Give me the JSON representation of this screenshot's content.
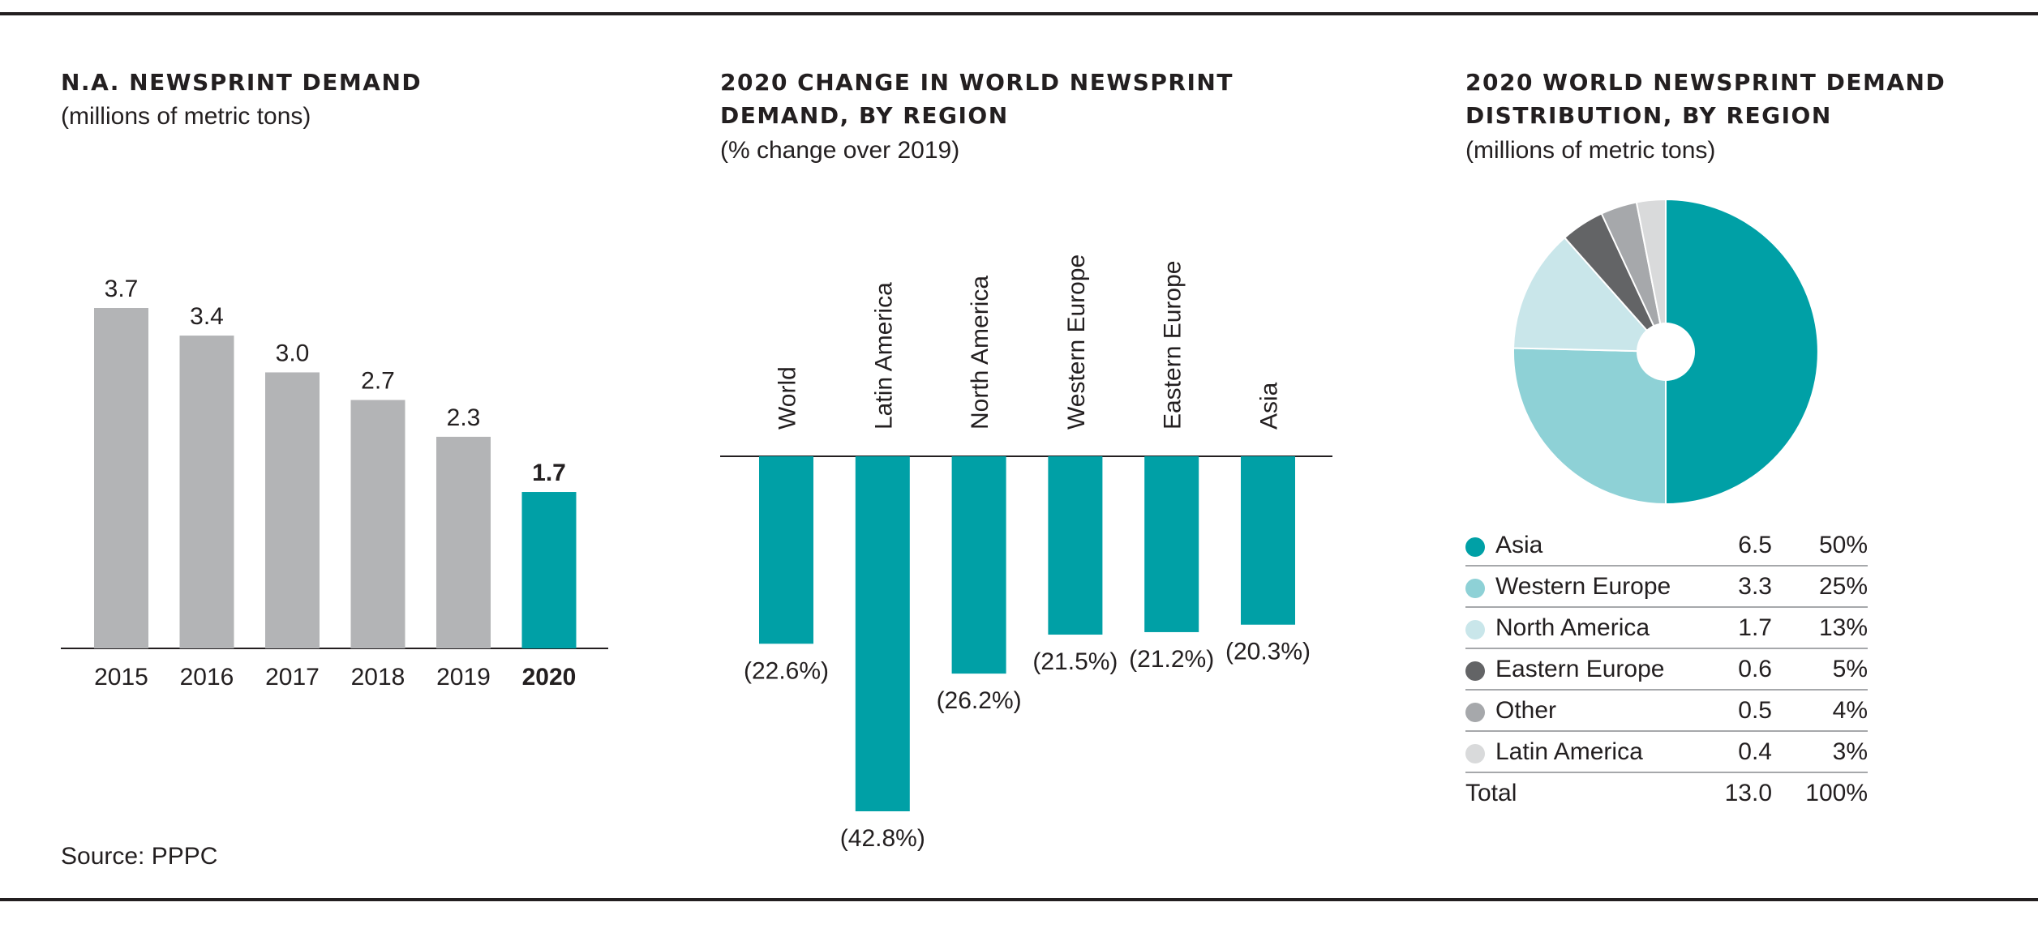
{
  "panels": {
    "left": {
      "title": "N.A. NEWSPRINT DEMAND",
      "subtitle": "(millions of metric tons)"
    },
    "middle": {
      "title_line1": "2020 CHANGE IN WORLD NEWSPRINT",
      "title_line2": "DEMAND, BY REGION",
      "subtitle": "(% change over 2019)"
    },
    "right": {
      "title_line1": "2020 WORLD NEWSPRINT DEMAND",
      "title_line2": "DISTRIBUTION, BY REGION",
      "subtitle": "(millions of metric tons)"
    }
  },
  "source": "Source: PPPC",
  "colors": {
    "teal": "#00a0a6",
    "grey_bar": "#b3b4b6",
    "text": "#231f20"
  },
  "chart_data": [
    {
      "type": "bar",
      "title": "N.A. NEWSPRINT DEMAND",
      "ylabel": "(millions of metric tons)",
      "categories": [
        "2015",
        "2016",
        "2017",
        "2018",
        "2019",
        "2020"
      ],
      "values": [
        3.7,
        3.4,
        3.0,
        2.7,
        2.3,
        1.7
      ],
      "labels": [
        "3.7",
        "3.4",
        "3.0",
        "2.7",
        "2.3",
        "1.7"
      ],
      "highlight_index": 5,
      "colors": [
        "#b3b4b6",
        "#b3b4b6",
        "#b3b4b6",
        "#b3b4b6",
        "#b3b4b6",
        "#00a0a6"
      ],
      "ylim": [
        0,
        4
      ]
    },
    {
      "type": "bar",
      "title": "2020 CHANGE IN WORLD NEWSPRINT DEMAND, BY REGION",
      "ylabel": "(% change over 2019)",
      "categories": [
        "World",
        "Latin America",
        "North America",
        "Western Europe",
        "Eastern Europe",
        "Asia"
      ],
      "values": [
        -22.6,
        -42.8,
        -26.2,
        -21.5,
        -21.2,
        -20.3
      ],
      "labels": [
        "(22.6%)",
        "(42.8%)",
        "(26.2%)",
        "(21.5%)",
        "(21.2%)",
        "(20.3%)"
      ],
      "color": "#00a0a6",
      "ylim": [
        -45,
        0
      ]
    },
    {
      "type": "pie",
      "title": "2020 WORLD NEWSPRINT DEMAND DISTRIBUTION, BY REGION",
      "ylabel": "(millions of metric tons)",
      "slices": [
        {
          "label": "Asia",
          "value": 6.5,
          "pct": "50%",
          "value_text": "6.5",
          "color": "#00a0a6"
        },
        {
          "label": "Western Europe",
          "value": 3.3,
          "pct": "25%",
          "value_text": "3.3",
          "color": "#8ed1d6"
        },
        {
          "label": "North America",
          "value": 1.7,
          "pct": "13%",
          "value_text": "1.7",
          "color": "#c9e6ea"
        },
        {
          "label": "Eastern Europe",
          "value": 0.6,
          "pct": "5%",
          "value_text": "0.6",
          "color": "#636466"
        },
        {
          "label": "Other",
          "value": 0.5,
          "pct": "4%",
          "value_text": "0.5",
          "color": "#a6a8ab"
        },
        {
          "label": "Latin America",
          "value": 0.4,
          "pct": "3%",
          "value_text": "0.4",
          "color": "#d9dadb"
        }
      ],
      "total": {
        "label": "Total",
        "value": "13.0",
        "pct": "100%"
      }
    }
  ]
}
